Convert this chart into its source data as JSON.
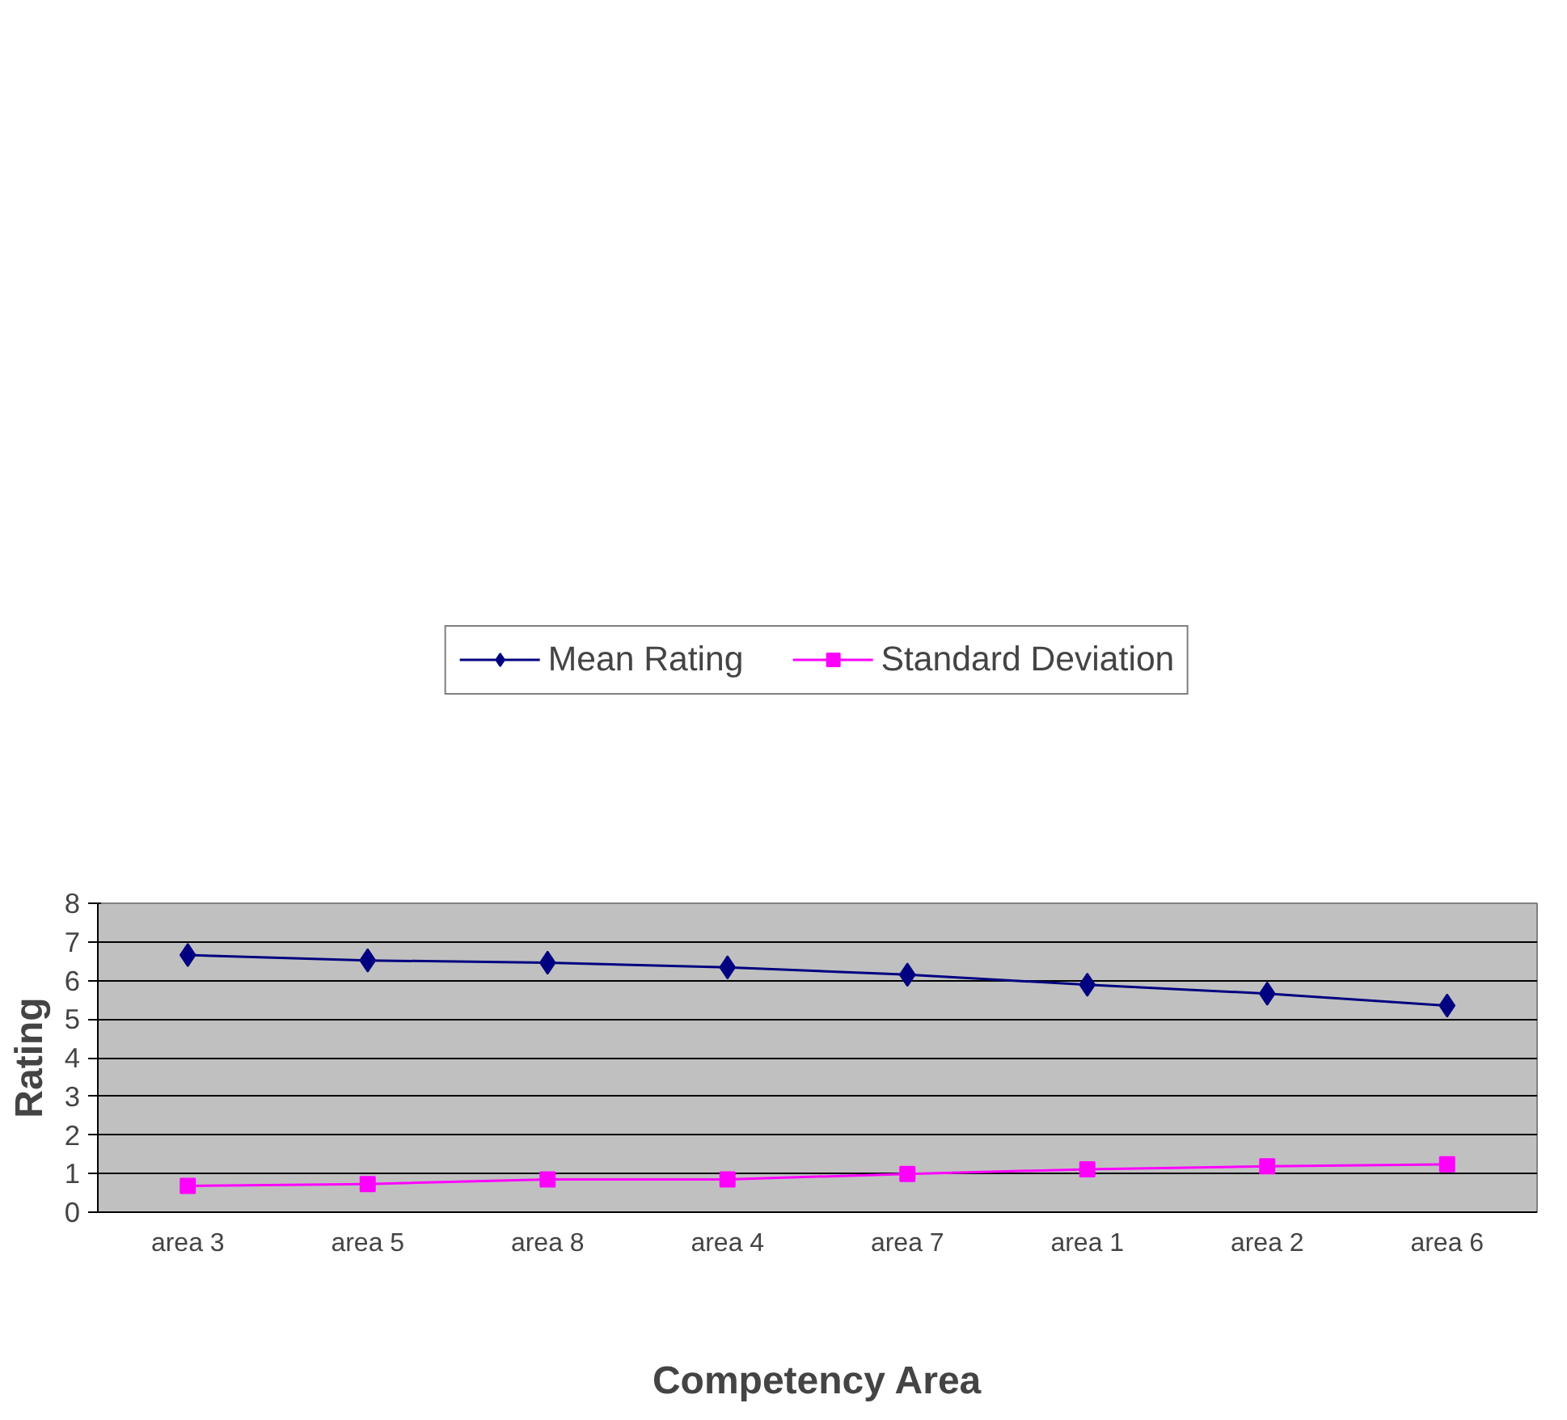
{
  "chart_data": {
    "type": "line",
    "xlabel": "Competency Area",
    "ylabel": "Rating",
    "categories": [
      "area 3",
      "area 5",
      "area 8",
      "area 4",
      "area 7",
      "area 1",
      "area 2",
      "area 6"
    ],
    "series": [
      {
        "name": "Mean Rating",
        "color": "#000080",
        "marker": "diamond",
        "values": [
          6.66,
          6.52,
          6.46,
          6.34,
          6.15,
          5.89,
          5.66,
          5.35
        ]
      },
      {
        "name": "Standard Deviation",
        "color": "#ff00ff",
        "marker": "square",
        "values": [
          0.68,
          0.73,
          0.85,
          0.85,
          0.99,
          1.11,
          1.19,
          1.24
        ]
      }
    ],
    "ylim": [
      0,
      8
    ],
    "yticks": [
      0,
      1,
      2,
      3,
      4,
      5,
      6,
      7,
      8
    ],
    "grid": "y",
    "legend": "top",
    "line_style": "solid"
  }
}
